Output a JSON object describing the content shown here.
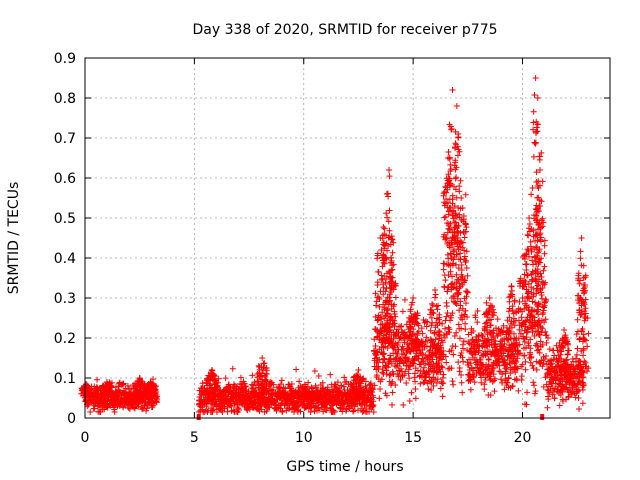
{
  "chart_data": {
    "type": "scatter",
    "title": "Day 338 of 2020, SRMTID for receiver p775",
    "xlabel": "GPS time / hours",
    "ylabel": "SRMTID / TECUs",
    "xlim": [
      0,
      24
    ],
    "ylim": [
      0,
      0.9
    ],
    "x_ticks": [
      0,
      5,
      10,
      15,
      20
    ],
    "y_ticks": [
      0,
      0.1,
      0.2,
      0.3,
      0.4,
      0.5,
      0.6,
      0.7,
      0.8,
      0.9
    ],
    "grid": true,
    "marker": "+",
    "series_color": "#ff0000",
    "series": [
      {
        "name": "SRMTID",
        "segments": [
          {
            "x_start": 0.0,
            "x_end": 3.3,
            "mean": 0.05,
            "spread": 0.025,
            "peaks": [
              [
                0.05,
                0.085
              ],
              [
                1.0,
                0.09
              ],
              [
                2.5,
                0.1
              ],
              [
                3.0,
                0.09
              ]
            ]
          },
          {
            "x_start": 5.2,
            "x_end": 13.2,
            "mean": 0.05,
            "spread": 0.03,
            "peaks": [
              [
                5.8,
                0.12
              ],
              [
                8.1,
                0.15
              ],
              [
                12.5,
                0.12
              ]
            ]
          },
          {
            "x_start": 13.2,
            "x_end": 15.0,
            "mean": 0.17,
            "spread": 0.09,
            "peaks": [
              [
                13.5,
                0.45
              ],
              [
                13.9,
                0.62
              ],
              [
                13.8,
                0.56
              ],
              [
                14.0,
                0.4
              ]
            ]
          },
          {
            "x_start": 15.0,
            "x_end": 16.4,
            "mean": 0.15,
            "spread": 0.07,
            "peaks": [
              [
                15.0,
                0.3
              ],
              [
                16.0,
                0.32
              ]
            ]
          },
          {
            "x_start": 16.4,
            "x_end": 17.5,
            "mean": 0.3,
            "spread": 0.2,
            "peaks": [
              [
                16.8,
                0.82
              ],
              [
                17.0,
                0.78
              ],
              [
                17.2,
                0.55
              ],
              [
                16.6,
                0.65
              ]
            ]
          },
          {
            "x_start": 17.5,
            "x_end": 19.8,
            "mean": 0.15,
            "spread": 0.07,
            "peaks": [
              [
                18.5,
                0.3
              ],
              [
                19.5,
                0.33
              ]
            ]
          },
          {
            "x_start": 19.8,
            "x_end": 21.1,
            "mean": 0.22,
            "spread": 0.12,
            "peaks": [
              [
                20.6,
                0.85
              ],
              [
                20.7,
                0.8
              ],
              [
                20.3,
                0.5
              ],
              [
                20.8,
                0.62
              ]
            ]
          },
          {
            "x_start": 21.1,
            "x_end": 22.8,
            "mean": 0.1,
            "spread": 0.05,
            "peaks": [
              [
                22.7,
                0.45
              ],
              [
                22.8,
                0.35
              ],
              [
                21.9,
                0.22
              ]
            ]
          }
        ],
        "zero_points": [
          5.2,
          20.9
        ]
      }
    ]
  }
}
